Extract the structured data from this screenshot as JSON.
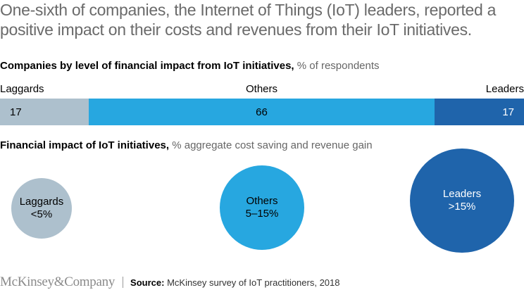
{
  "headline": "One-sixth of companies, the Internet of Things (IoT) leaders, reported a positive impact on their costs and revenues from their IoT initiatives.",
  "section1": {
    "title": "Companies by level of financial impact from IoT initiatives,",
    "unit": "% of respondents"
  },
  "section2": {
    "title": "Financial impact of IoT initiatives,",
    "unit": "% aggregate cost saving and revenue gain"
  },
  "colors": {
    "laggards": "#adc0cd",
    "others": "#27a7e0",
    "leaders": "#1f64ab"
  },
  "chart_data": [
    {
      "type": "bar",
      "orientation": "horizontal-stacked",
      "title": "Companies by level of financial impact from IoT initiatives",
      "unit": "% of respondents",
      "categories": [
        "Laggards",
        "Others",
        "Leaders"
      ],
      "values": [
        17,
        66,
        17
      ],
      "data_labels": [
        "17",
        "66",
        "17"
      ]
    },
    {
      "type": "bubble",
      "title": "Financial impact of IoT initiatives",
      "unit": "% aggregate cost saving and revenue gain",
      "categories": [
        "Laggards",
        "Others",
        "Leaders"
      ],
      "labels": [
        "<5%",
        "5–15%",
        ">15%"
      ]
    }
  ],
  "footer": {
    "logo": "McKinsey&Company",
    "source_label": "Source:",
    "source_text": "McKinsey survey of IoT practitioners, 2018"
  }
}
